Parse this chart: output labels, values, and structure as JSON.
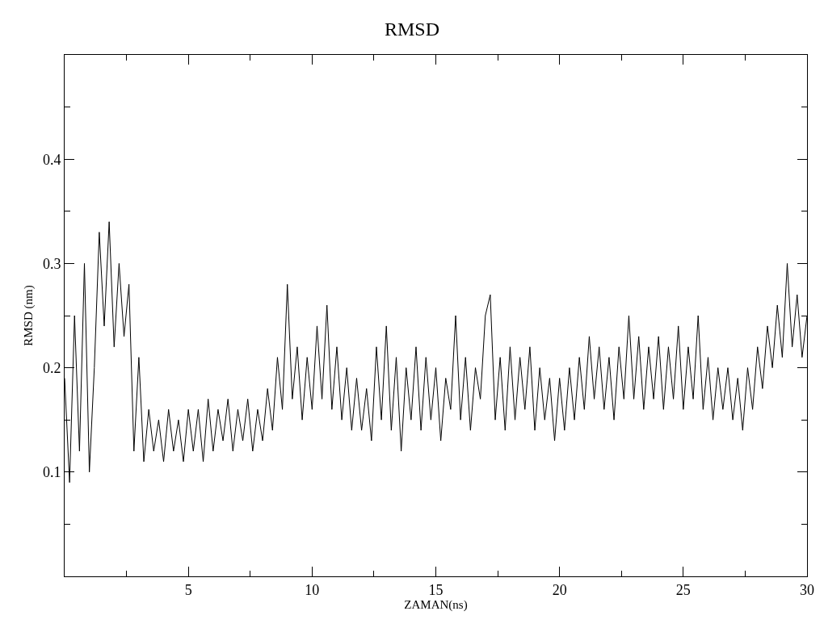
{
  "chart_data": {
    "type": "line",
    "title": "RMSD",
    "xlabel": "ZAMAN(ns)",
    "ylabel": "RMSD (nm)",
    "xlim": [
      0,
      30
    ],
    "ylim": [
      0,
      0.5
    ],
    "xticks": [
      {
        "value": 2.5,
        "label": null
      },
      5,
      {
        "value": 7.5,
        "label": null
      },
      10,
      {
        "value": 12.5,
        "label": null
      },
      15,
      {
        "value": 17.5,
        "label": null
      },
      20,
      {
        "value": 22.5,
        "label": null
      },
      25,
      {
        "value": 27.5,
        "label": null
      },
      30
    ],
    "yticks": [
      {
        "value": 0.05,
        "label": null
      },
      0.1,
      {
        "value": 0.15,
        "label": null
      },
      0.2,
      {
        "value": 0.25,
        "label": null
      },
      0.3,
      {
        "value": 0.35,
        "label": null
      },
      0.4,
      {
        "value": 0.45,
        "label": null
      }
    ],
    "marker": "none",
    "line_style": "solid",
    "series": [
      {
        "color": "#000000",
        "x": [
          0.0,
          0.2,
          0.4,
          0.6,
          0.8,
          1.0,
          1.2,
          1.4,
          1.6,
          1.8,
          2.0,
          2.2,
          2.4,
          2.6,
          2.8,
          3.0,
          3.2,
          3.4,
          3.6,
          3.8,
          4.0,
          4.2,
          4.4,
          4.6,
          4.8,
          5.0,
          5.2,
          5.4,
          5.6,
          5.8,
          6.0,
          6.2,
          6.4,
          6.6,
          6.8,
          7.0,
          7.2,
          7.4,
          7.6,
          7.8,
          8.0,
          8.2,
          8.4,
          8.6,
          8.8,
          9.0,
          9.2,
          9.4,
          9.6,
          9.8,
          10.0,
          10.2,
          10.4,
          10.6,
          10.8,
          11.0,
          11.2,
          11.4,
          11.6,
          11.8,
          12.0,
          12.2,
          12.4,
          12.6,
          12.8,
          13.0,
          13.2,
          13.4,
          13.6,
          13.8,
          14.0,
          14.2,
          14.4,
          14.6,
          14.8,
          15.0,
          15.2,
          15.4,
          15.6,
          15.8,
          16.0,
          16.2,
          16.4,
          16.6,
          16.8,
          17.0,
          17.2,
          17.4,
          17.6,
          17.8,
          18.0,
          18.2,
          18.4,
          18.6,
          18.8,
          19.0,
          19.2,
          19.4,
          19.6,
          19.8,
          20.0,
          20.2,
          20.4,
          20.6,
          20.8,
          21.0,
          21.2,
          21.4,
          21.6,
          21.8,
          22.0,
          22.2,
          22.4,
          22.6,
          22.8,
          23.0,
          23.2,
          23.4,
          23.6,
          23.8,
          24.0,
          24.2,
          24.4,
          24.6,
          24.8,
          25.0,
          25.2,
          25.4,
          25.6,
          25.8,
          26.0,
          26.2,
          26.4,
          26.6,
          26.8,
          27.0,
          27.2,
          27.4,
          27.6,
          27.8,
          28.0,
          28.2,
          28.4,
          28.6,
          28.8,
          29.0,
          29.2,
          29.4,
          29.6,
          29.8,
          30.0
        ],
        "values": [
          0.19,
          0.09,
          0.25,
          0.12,
          0.3,
          0.1,
          0.2,
          0.33,
          0.24,
          0.34,
          0.22,
          0.3,
          0.23,
          0.28,
          0.12,
          0.21,
          0.11,
          0.16,
          0.12,
          0.15,
          0.11,
          0.16,
          0.12,
          0.15,
          0.11,
          0.16,
          0.12,
          0.16,
          0.11,
          0.17,
          0.12,
          0.16,
          0.13,
          0.17,
          0.12,
          0.16,
          0.13,
          0.17,
          0.12,
          0.16,
          0.13,
          0.18,
          0.14,
          0.21,
          0.16,
          0.28,
          0.17,
          0.22,
          0.15,
          0.21,
          0.16,
          0.24,
          0.17,
          0.26,
          0.16,
          0.22,
          0.15,
          0.2,
          0.14,
          0.19,
          0.14,
          0.18,
          0.13,
          0.22,
          0.15,
          0.24,
          0.14,
          0.21,
          0.12,
          0.2,
          0.15,
          0.22,
          0.14,
          0.21,
          0.15,
          0.2,
          0.13,
          0.19,
          0.16,
          0.25,
          0.15,
          0.21,
          0.14,
          0.2,
          0.17,
          0.25,
          0.27,
          0.15,
          0.21,
          0.14,
          0.22,
          0.15,
          0.21,
          0.16,
          0.22,
          0.14,
          0.2,
          0.15,
          0.19,
          0.13,
          0.19,
          0.14,
          0.2,
          0.15,
          0.21,
          0.16,
          0.23,
          0.17,
          0.22,
          0.16,
          0.21,
          0.15,
          0.22,
          0.17,
          0.25,
          0.17,
          0.23,
          0.16,
          0.22,
          0.17,
          0.23,
          0.16,
          0.22,
          0.17,
          0.24,
          0.16,
          0.22,
          0.17,
          0.25,
          0.16,
          0.21,
          0.15,
          0.2,
          0.16,
          0.2,
          0.15,
          0.19,
          0.14,
          0.2,
          0.16,
          0.22,
          0.18,
          0.24,
          0.2,
          0.26,
          0.21,
          0.3,
          0.22,
          0.27,
          0.21,
          0.25
        ]
      }
    ]
  }
}
